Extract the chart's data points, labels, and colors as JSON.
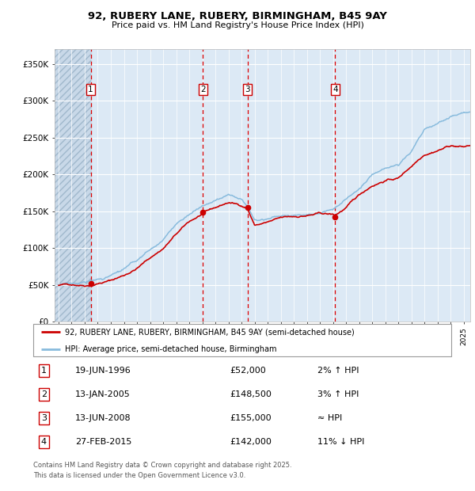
{
  "title_line1": "92, RUBERY LANE, RUBERY, BIRMINGHAM, B45 9AY",
  "title_line2": "Price paid vs. HM Land Registry's House Price Index (HPI)",
  "ylabel_ticks": [
    "£0",
    "£50K",
    "£100K",
    "£150K",
    "£200K",
    "£250K",
    "£300K",
    "£350K"
  ],
  "ytick_values": [
    0,
    50000,
    100000,
    150000,
    200000,
    250000,
    300000,
    350000
  ],
  "ylim": [
    0,
    370000
  ],
  "xlim_start": 1993.7,
  "xlim_end": 2025.5,
  "background_color": "#dce9f5",
  "grid_color": "#ffffff",
  "red_line_color": "#cc0000",
  "blue_line_color": "#88bbdd",
  "sale_marker_color": "#cc0000",
  "dashed_line_color": "#dd0000",
  "purchases": [
    {
      "num": 1,
      "date_dec": 1996.46,
      "price": 52000
    },
    {
      "num": 2,
      "date_dec": 2005.04,
      "price": 148500
    },
    {
      "num": 3,
      "date_dec": 2008.45,
      "price": 155000
    },
    {
      "num": 4,
      "date_dec": 2015.16,
      "price": 142000
    }
  ],
  "table_rows": [
    {
      "num": "1",
      "date": "19-JUN-1996",
      "price": "£52,000",
      "hpi": "2% ↑ HPI"
    },
    {
      "num": "2",
      "date": "13-JAN-2005",
      "price": "£148,500",
      "hpi": "3% ↑ HPI"
    },
    {
      "num": "3",
      "date": "13-JUN-2008",
      "price": "£155,000",
      "hpi": "≈ HPI"
    },
    {
      "num": "4",
      "date": "27-FEB-2015",
      "price": "£142,000",
      "hpi": "11% ↓ HPI"
    }
  ],
  "legend_line1": "92, RUBERY LANE, RUBERY, BIRMINGHAM, B45 9AY (semi-detached house)",
  "legend_line2": "HPI: Average price, semi-detached house, Birmingham",
  "footer_line1": "Contains HM Land Registry data © Crown copyright and database right 2025.",
  "footer_line2": "This data is licensed under the Open Government Licence v3.0."
}
